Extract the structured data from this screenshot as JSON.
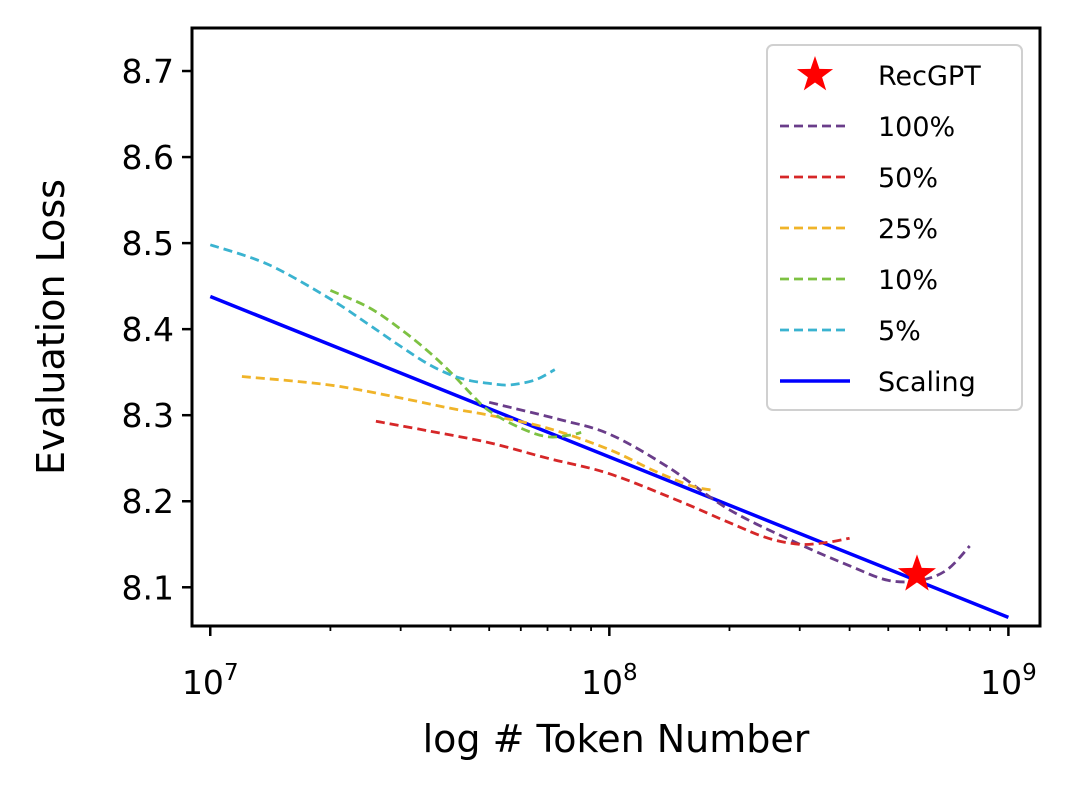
{
  "chart_data": {
    "type": "line",
    "title": "",
    "xlabel": "log # Token Number",
    "ylabel": "Evaluation Loss",
    "x_scale": "log",
    "xlim": [
      9000000,
      1200000000
    ],
    "ylim": [
      8.055,
      8.75
    ],
    "x_ticks": [
      {
        "value": 10000000,
        "base": "10",
        "exp": "7"
      },
      {
        "value": 100000000,
        "base": "10",
        "exp": "8"
      },
      {
        "value": 1000000000,
        "base": "10",
        "exp": "9"
      }
    ],
    "y_ticks": [
      {
        "value": 8.1,
        "label": "8.1"
      },
      {
        "value": 8.2,
        "label": "8.2"
      },
      {
        "value": 8.3,
        "label": "8.3"
      },
      {
        "value": 8.4,
        "label": "8.4"
      },
      {
        "value": 8.5,
        "label": "8.5"
      },
      {
        "value": 8.6,
        "label": "8.6"
      },
      {
        "value": 8.7,
        "label": "8.7"
      }
    ],
    "grid": false,
    "legend_position": "top-right",
    "series": [
      {
        "name": "RecGPT",
        "type": "marker",
        "marker": "star",
        "color": "#ff0000",
        "points": [
          [
            590000000,
            8.115
          ]
        ]
      },
      {
        "name": "100%",
        "type": "dashed",
        "color": "#6a3d8a",
        "points": [
          [
            50000000,
            8.315
          ],
          [
            75000000,
            8.295
          ],
          [
            100000000,
            8.278
          ],
          [
            140000000,
            8.24
          ],
          [
            200000000,
            8.19
          ],
          [
            300000000,
            8.15
          ],
          [
            400000000,
            8.125
          ],
          [
            500000000,
            8.108
          ],
          [
            600000000,
            8.108
          ],
          [
            700000000,
            8.12
          ],
          [
            800000000,
            8.148
          ]
        ]
      },
      {
        "name": "50%",
        "type": "dashed",
        "color": "#d62728",
        "points": [
          [
            26000000,
            8.293
          ],
          [
            35000000,
            8.282
          ],
          [
            50000000,
            8.268
          ],
          [
            70000000,
            8.25
          ],
          [
            100000000,
            8.232
          ],
          [
            150000000,
            8.2
          ],
          [
            200000000,
            8.175
          ],
          [
            250000000,
            8.157
          ],
          [
            300000000,
            8.15
          ],
          [
            350000000,
            8.152
          ],
          [
            400000000,
            8.157
          ]
        ]
      },
      {
        "name": "25%",
        "type": "dashed",
        "color": "#f0b429",
        "points": [
          [
            12000000,
            8.345
          ],
          [
            20000000,
            8.335
          ],
          [
            30000000,
            8.32
          ],
          [
            40000000,
            8.308
          ],
          [
            50000000,
            8.3
          ],
          [
            70000000,
            8.285
          ],
          [
            100000000,
            8.26
          ],
          [
            130000000,
            8.235
          ],
          [
            160000000,
            8.218
          ],
          [
            180000000,
            8.213
          ]
        ]
      },
      {
        "name": "10%",
        "type": "dashed",
        "color": "#7dc142",
        "points": [
          [
            20000000,
            8.445
          ],
          [
            25000000,
            8.425
          ],
          [
            30000000,
            8.4
          ],
          [
            35000000,
            8.375
          ],
          [
            40000000,
            8.35
          ],
          [
            45000000,
            8.325
          ],
          [
            50000000,
            8.305
          ],
          [
            60000000,
            8.285
          ],
          [
            70000000,
            8.275
          ],
          [
            80000000,
            8.277
          ],
          [
            85000000,
            8.28
          ]
        ]
      },
      {
        "name": "5%",
        "type": "dashed",
        "color": "#3ab3d0",
        "points": [
          [
            10000000,
            8.498
          ],
          [
            14000000,
            8.475
          ],
          [
            20000000,
            8.435
          ],
          [
            25000000,
            8.405
          ],
          [
            30000000,
            8.38
          ],
          [
            35000000,
            8.36
          ],
          [
            40000000,
            8.347
          ],
          [
            45000000,
            8.34
          ],
          [
            50000000,
            8.337
          ],
          [
            55000000,
            8.335
          ],
          [
            60000000,
            8.337
          ],
          [
            66000000,
            8.342
          ],
          [
            73000000,
            8.353
          ]
        ]
      },
      {
        "name": "Scaling",
        "type": "solid",
        "color": "#0000ff",
        "points": [
          [
            10000000,
            8.438
          ],
          [
            1000000000,
            8.065
          ]
        ]
      }
    ]
  }
}
